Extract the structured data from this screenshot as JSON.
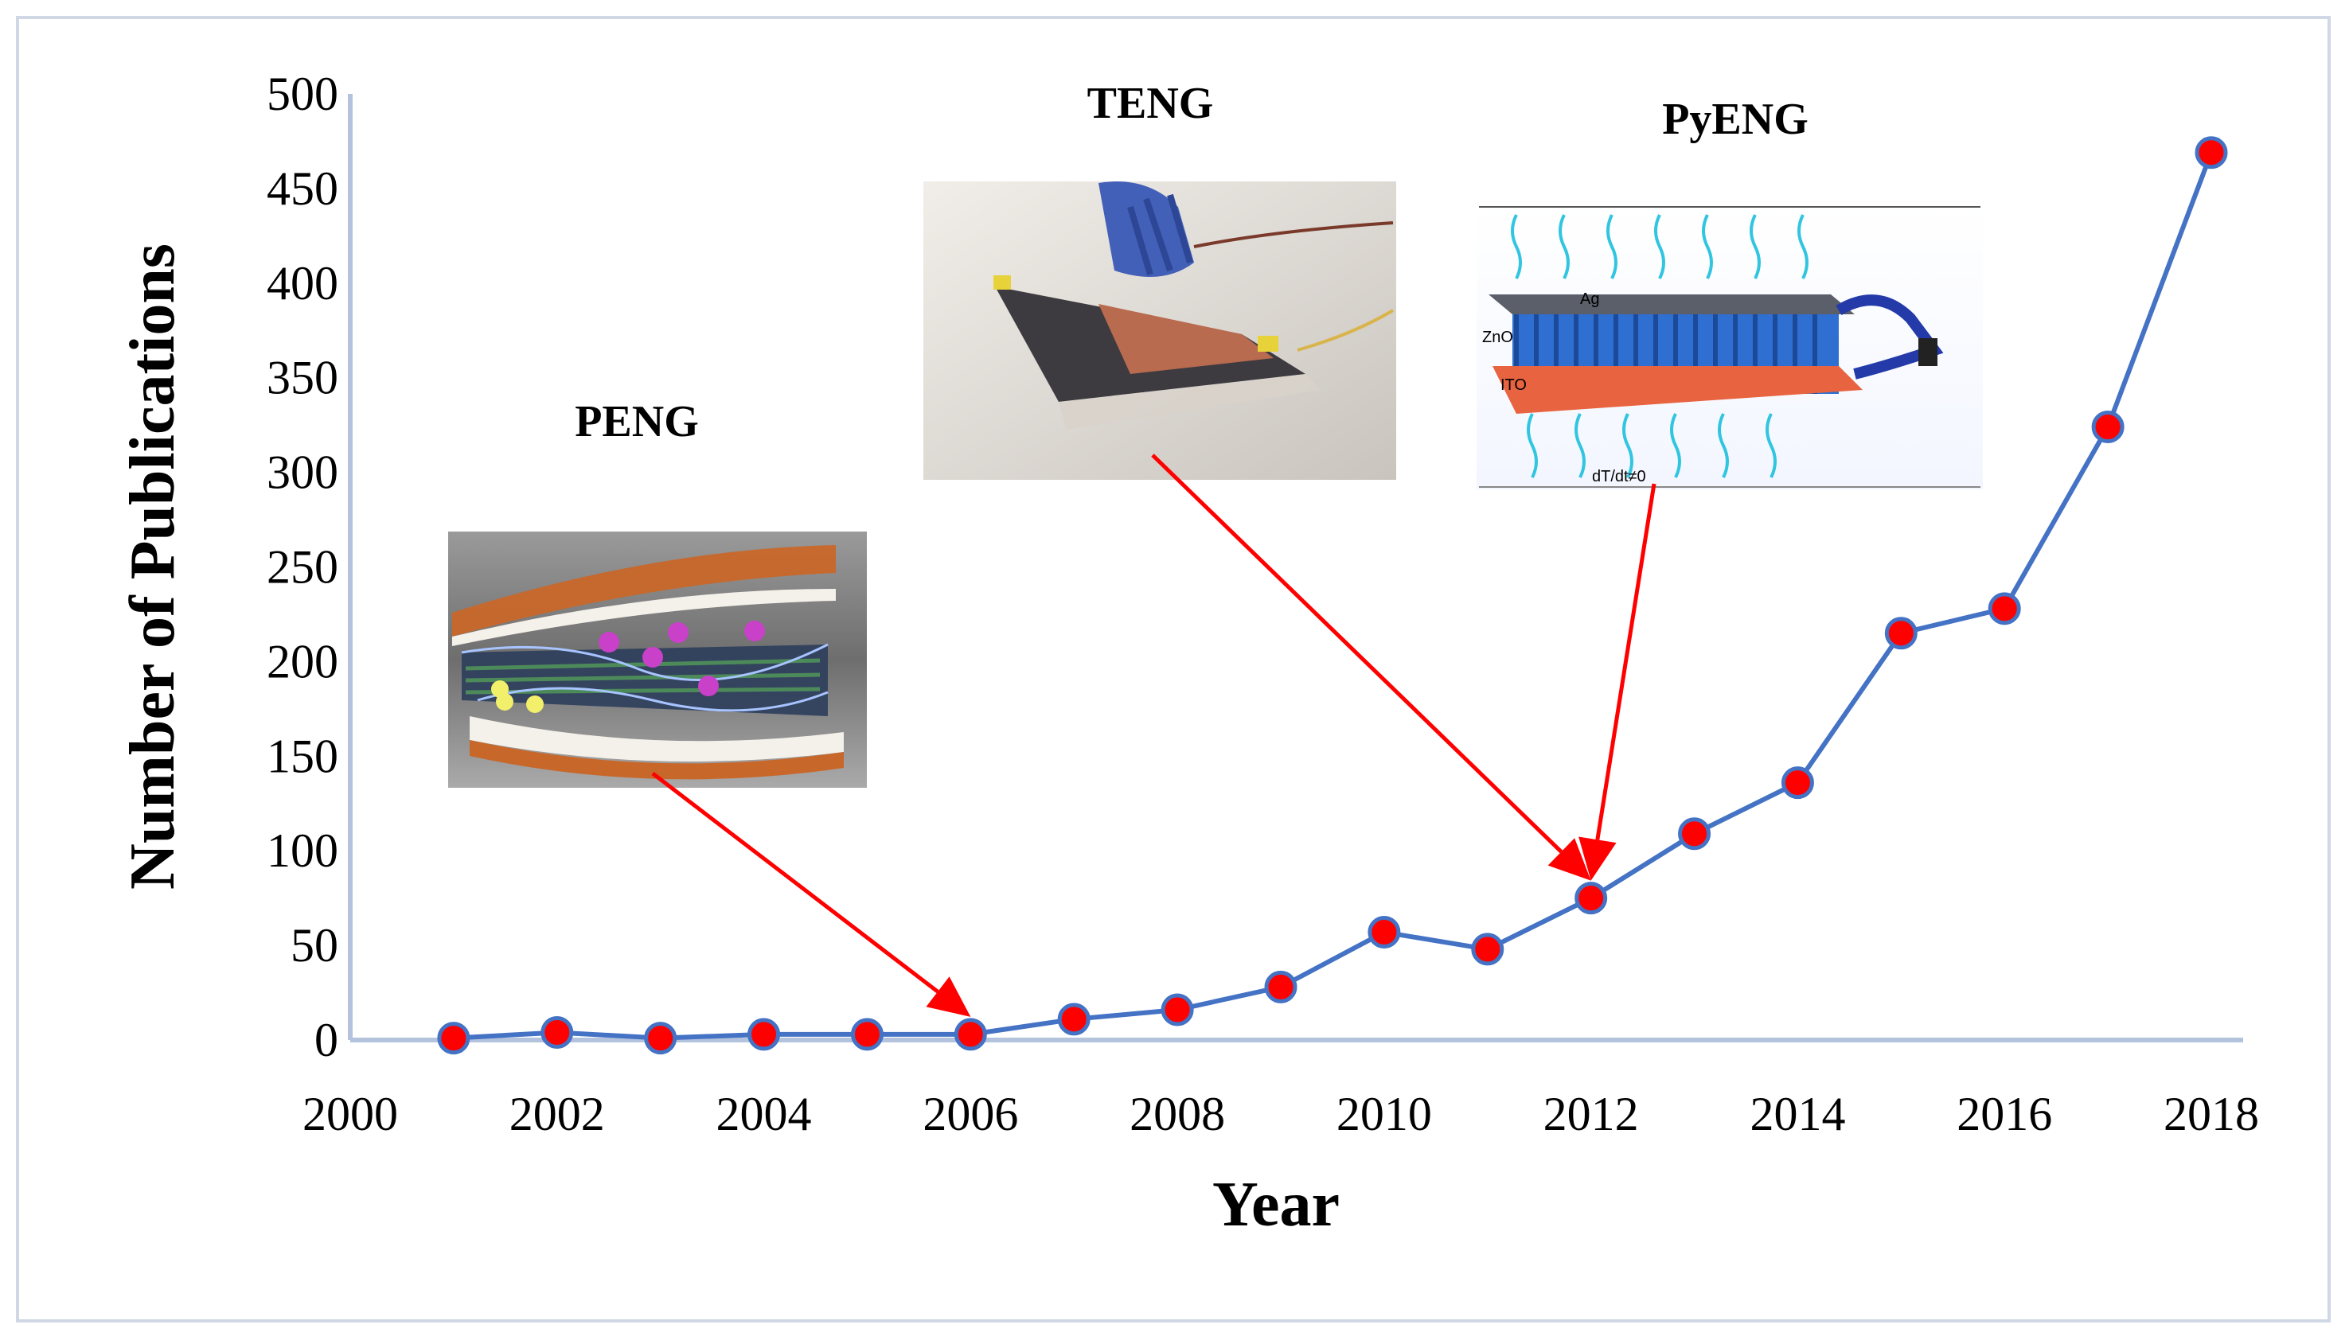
{
  "chart_data": {
    "type": "line",
    "title": "",
    "xlabel": "Year",
    "ylabel": "Number of Publications",
    "x": [
      2001,
      2002,
      2003,
      2004,
      2005,
      2006,
      2007,
      2008,
      2009,
      2010,
      2011,
      2012,
      2013,
      2014,
      2015,
      2016,
      2017,
      2018
    ],
    "series": [
      {
        "name": "Publications",
        "values": [
          1,
          4,
          1,
          3,
          3,
          3,
          11,
          16,
          28,
          57,
          48,
          75,
          109,
          136,
          215,
          228,
          324,
          469
        ]
      }
    ],
    "xlim": [
      2000,
      2018
    ],
    "ylim": [
      0,
      500
    ],
    "xticks": [
      "2000",
      "2002",
      "2004",
      "2006",
      "2008",
      "2010",
      "2012",
      "2014",
      "2016",
      "2018"
    ],
    "yticks": [
      "0",
      "50",
      "100",
      "150",
      "200",
      "250",
      "300",
      "350",
      "400",
      "450",
      "500"
    ],
    "grid": false,
    "annotations": [
      {
        "label": "PENG",
        "picture": "PENG device illustration",
        "points_to_year": 2006
      },
      {
        "label": "TENG",
        "picture": "TENG device photo",
        "points_to_year": 2012
      },
      {
        "label": "PyENG",
        "picture": "PyENG device schematic",
        "points_to_year": 2012
      }
    ],
    "pyeng_inset_labels": {
      "top": "Ag",
      "middle": "ZnO",
      "bottom": "ITO",
      "condition": "dT/dt≠0"
    }
  },
  "colors": {
    "line": "#4472c4",
    "marker_fill": "#ff0000",
    "marker_edge": "#4472c4",
    "arrow": "#ff0000",
    "axis": "#b4c3dd",
    "border": "#d0d7e5"
  }
}
